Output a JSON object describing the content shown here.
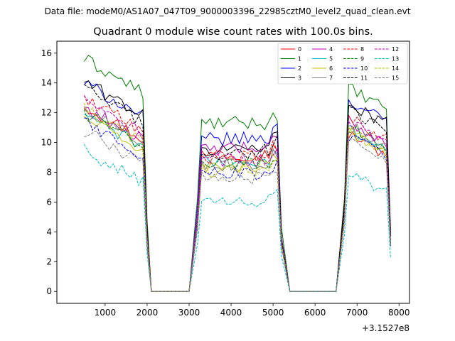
{
  "chart_data": {
    "type": "line",
    "suptitle": "Data file: modeM0/AS1A07_047T09_9000003396_22985cztM0_level2_quad_clean.evt",
    "title": "Quadrant 0 module wise count rates with 100.0s bins.",
    "xlabel": "",
    "ylabel": "",
    "x_offset_label": "+3.1527e8",
    "xlim": [
      -150,
      8250
    ],
    "ylim": [
      -0.8,
      16.8
    ],
    "xticks": [
      1000,
      2000,
      3000,
      4000,
      5000,
      6000,
      7000,
      8000
    ],
    "yticks": [
      0,
      2,
      4,
      6,
      8,
      10,
      12,
      14,
      16
    ],
    "legend_position": "top-right",
    "segments": [
      {
        "start": 500,
        "step": 100,
        "count": 16
      },
      {
        "start": 2100,
        "step": 100,
        "count": 10
      },
      {
        "start": 3200,
        "step": 100,
        "count": 21
      },
      {
        "start": 5400,
        "step": 100,
        "count": 12
      },
      {
        "start": 6700,
        "step": 100,
        "count": 12
      }
    ],
    "series": [
      {
        "name": "0",
        "color": "#ff0000",
        "dash": "solid",
        "levels": [
          12.5,
          9.2,
          9.2,
          10.8
        ]
      },
      {
        "name": "1",
        "color": "#008000",
        "dash": "solid",
        "levels": [
          15.6,
          11.3,
          11.3,
          13.8
        ]
      },
      {
        "name": "2",
        "color": "#0000ff",
        "dash": "solid",
        "levels": [
          14.0,
          10.2,
          10.3,
          13.0
        ]
      },
      {
        "name": "3",
        "color": "#000000",
        "dash": "solid",
        "levels": [
          14.1,
          9.4,
          9.9,
          12.9
        ]
      },
      {
        "name": "4",
        "color": "#bf00bf",
        "dash": "solid",
        "levels": [
          12.4,
          9.6,
          9.6,
          11.6
        ]
      },
      {
        "name": "5",
        "color": "#00bfbf",
        "dash": "solid",
        "levels": [
          11.9,
          8.7,
          8.6,
          11.2
        ]
      },
      {
        "name": "6",
        "color": "#bfbf00",
        "dash": "solid",
        "levels": [
          11.7,
          8.4,
          8.3,
          11.0
        ]
      },
      {
        "name": "7",
        "color": "#808080",
        "dash": "solid",
        "levels": [
          12.3,
          8.5,
          8.6,
          11.3
        ]
      },
      {
        "name": "8",
        "color": "#ff0000",
        "dash": "dashed",
        "levels": [
          13.0,
          9.0,
          9.1,
          11.8
        ]
      },
      {
        "name": "9",
        "color": "#008000",
        "dash": "dashed",
        "levels": [
          12.0,
          8.6,
          8.6,
          11.2
        ]
      },
      {
        "name": "10",
        "color": "#0000ff",
        "dash": "dashed",
        "levels": [
          11.4,
          8.0,
          7.8,
          10.6
        ]
      },
      {
        "name": "11",
        "color": "#000000",
        "dash": "dashed",
        "levels": [
          13.6,
          9.0,
          9.6,
          12.3
        ]
      },
      {
        "name": "12",
        "color": "#bf00bf",
        "dash": "dashed",
        "levels": [
          12.8,
          8.8,
          8.8,
          11.6
        ]
      },
      {
        "name": "13",
        "color": "#00bfbf",
        "dash": "dashed",
        "levels": [
          9.5,
          5.9,
          6.2,
          8.2
        ]
      },
      {
        "name": "14",
        "color": "#bfbf00",
        "dash": "dashed",
        "levels": [
          12.2,
          8.1,
          8.3,
          10.9
        ]
      },
      {
        "name": "15",
        "color": "#808080",
        "dash": "dashed",
        "levels": [
          10.8,
          7.9,
          7.5,
          10.4
        ]
      }
    ]
  }
}
